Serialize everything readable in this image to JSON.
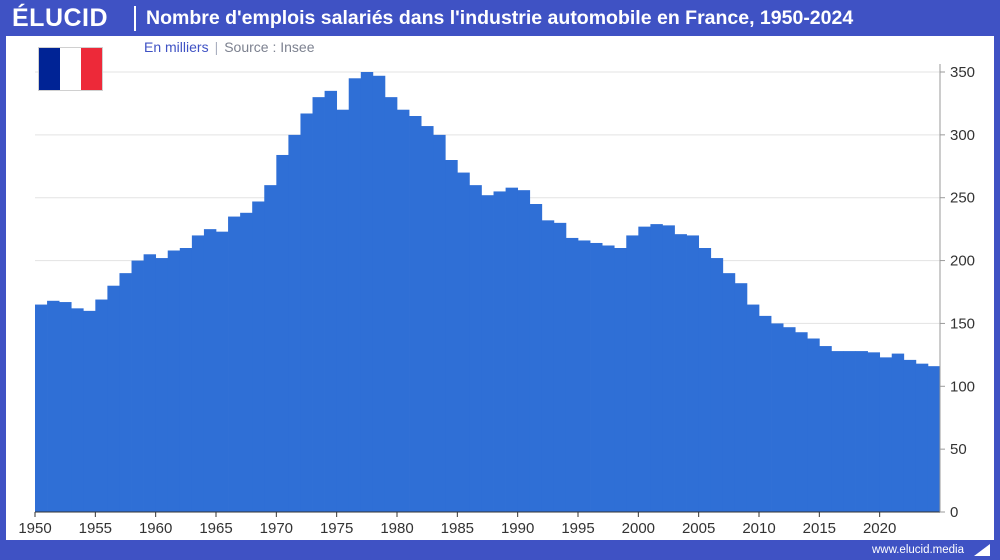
{
  "brand": "ÉLUCID",
  "title": "Nombre d'emplois salariés dans l'industrie automobile en France, 1950-2024",
  "subtitle": {
    "unit": "En milliers",
    "separator": "|",
    "source": "Source : Insee"
  },
  "footer": {
    "site": "www.elucid.media"
  },
  "colors": {
    "bar": "#2f6fd6",
    "brand": "#3f52c4",
    "grid": "#e3e3e3",
    "axis": "#333333"
  },
  "flag": {
    "icon": "france-flag-icon",
    "colors": [
      "#002395",
      "#ffffff",
      "#ed2939"
    ]
  },
  "chart_data": {
    "type": "bar",
    "title": "Nombre d'emplois salariés dans l'industrie automobile en France, 1950-2024",
    "ylabel": "En milliers",
    "ylim": [
      0,
      350
    ],
    "y_ticks": [
      0,
      50,
      100,
      150,
      200,
      250,
      300,
      350
    ],
    "y_axis_side": "right",
    "x_ticks": [
      1950,
      1955,
      1960,
      1965,
      1970,
      1975,
      1980,
      1985,
      1990,
      1995,
      2000,
      2005,
      2010,
      2015,
      2020
    ],
    "grid": true,
    "legend": "none",
    "x": [
      1950,
      1951,
      1952,
      1953,
      1954,
      1955,
      1956,
      1957,
      1958,
      1959,
      1960,
      1961,
      1962,
      1963,
      1964,
      1965,
      1966,
      1967,
      1968,
      1969,
      1970,
      1971,
      1972,
      1973,
      1974,
      1975,
      1976,
      1977,
      1978,
      1979,
      1980,
      1981,
      1982,
      1983,
      1984,
      1985,
      1986,
      1987,
      1988,
      1989,
      1990,
      1991,
      1992,
      1993,
      1994,
      1995,
      1996,
      1997,
      1998,
      1999,
      2000,
      2001,
      2002,
      2003,
      2004,
      2005,
      2006,
      2007,
      2008,
      2009,
      2010,
      2011,
      2012,
      2013,
      2014,
      2015,
      2016,
      2017,
      2018,
      2019,
      2020,
      2021,
      2022,
      2023,
      2024
    ],
    "values": [
      165,
      168,
      167,
      162,
      160,
      169,
      180,
      190,
      200,
      205,
      202,
      208,
      210,
      220,
      225,
      223,
      235,
      238,
      247,
      260,
      284,
      300,
      317,
      330,
      335,
      320,
      345,
      350,
      347,
      330,
      320,
      315,
      307,
      300,
      280,
      270,
      260,
      252,
      255,
      258,
      256,
      245,
      232,
      230,
      218,
      216,
      214,
      212,
      210,
      220,
      227,
      229,
      228,
      221,
      220,
      210,
      202,
      190,
      182,
      165,
      156,
      150,
      147,
      143,
      138,
      132,
      128,
      128,
      128,
      127,
      123,
      126,
      121,
      118,
      116
    ]
  }
}
